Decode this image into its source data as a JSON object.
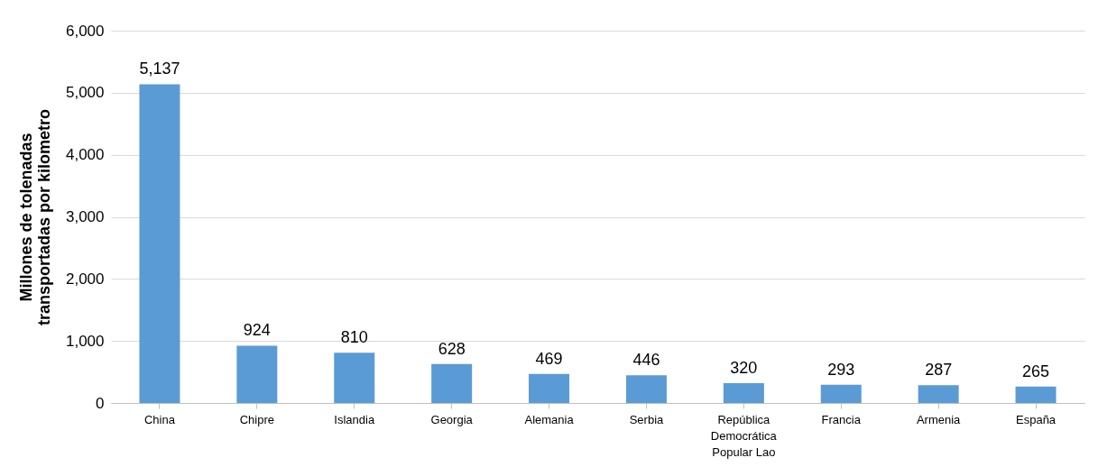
{
  "chart_data": {
    "type": "bar",
    "ylabel": "Millones de tolenadas transportadas por kilometro",
    "categories": [
      "China",
      "Chipre",
      "Islandia",
      "Georgia",
      "Alemania",
      "Serbia",
      "República Democrática Popular Lao",
      "Francia",
      "Armenia",
      "España"
    ],
    "values": [
      5137,
      924,
      810,
      628,
      469,
      446,
      320,
      293,
      287,
      265
    ],
    "color": "#5b9bd5",
    "value_labels": [
      "5,137",
      "924",
      "810",
      "628",
      "469",
      "446",
      "320",
      "293",
      "287",
      "265"
    ],
    "ylim": [
      0,
      6000
    ],
    "yticks": [
      0,
      {
        "value": 1000,
        "label": "1,000"
      },
      {
        "value": 2000,
        "label": "2,000"
      },
      {
        "value": 3000,
        "label": "3,000"
      },
      {
        "value": 4000,
        "label": "4,000"
      },
      {
        "value": 5000,
        "label": "5,000"
      },
      {
        "value": 6000,
        "label": "6,000"
      }
    ],
    "grid": "y"
  }
}
